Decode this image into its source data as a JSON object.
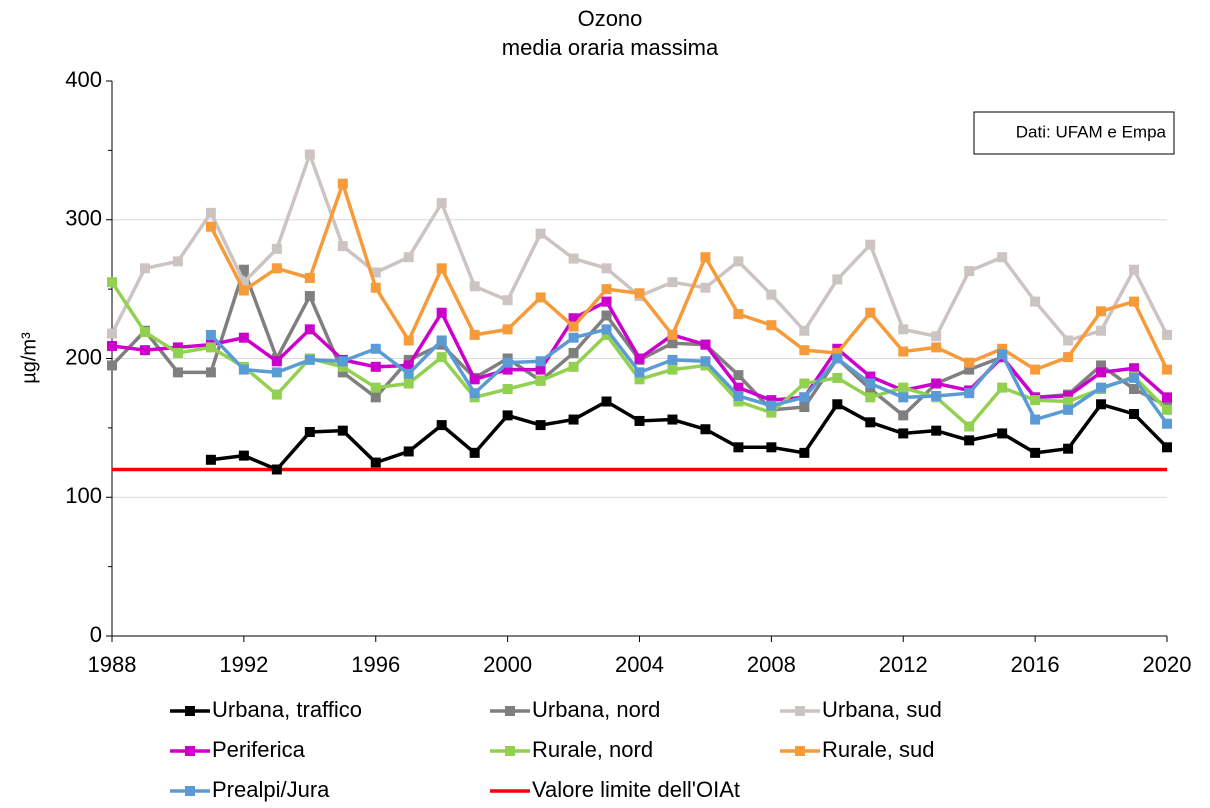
{
  "chart_data": {
    "type": "line",
    "title": "Ozono",
    "subtitle": "media oraria massima",
    "y_label": "µg/m³",
    "annotation": "Dati: UFAM e Empa",
    "x": [
      1988,
      1989,
      1990,
      1991,
      1992,
      1993,
      1994,
      1995,
      1996,
      1997,
      1998,
      1999,
      2000,
      2001,
      2002,
      2003,
      2004,
      2005,
      2006,
      2007,
      2008,
      2009,
      2010,
      2011,
      2012,
      2013,
      2014,
      2015,
      2016,
      2017,
      2018,
      2019,
      2020
    ],
    "xlim": [
      1988,
      2020
    ],
    "xticks": [
      1988,
      1992,
      1996,
      2000,
      2004,
      2008,
      2012,
      2016,
      2020
    ],
    "ylim": [
      0,
      400
    ],
    "yticks": [
      0,
      100,
      200,
      300,
      400
    ],
    "yminor_ticks": [
      50,
      150,
      250,
      350
    ],
    "grid": true,
    "series": [
      {
        "name": "Urbana, traffico",
        "color": "#000000",
        "values": [
          null,
          null,
          null,
          127,
          130,
          120,
          147,
          148,
          125,
          133,
          152,
          132,
          159,
          152,
          156,
          169,
          155,
          156,
          149,
          136,
          136,
          132,
          167,
          154,
          146,
          148,
          141,
          146,
          132,
          135,
          167,
          160,
          136
        ]
      },
      {
        "name": "Urbana, nord",
        "color": "#7f7f7f",
        "values": [
          195,
          220,
          190,
          190,
          264,
          200,
          245,
          190,
          172,
          199,
          210,
          186,
          200,
          184,
          204,
          231,
          199,
          211,
          210,
          188,
          163,
          165,
          200,
          178,
          159,
          182,
          192,
          201,
          172,
          174,
          195,
          178,
          166
        ]
      },
      {
        "name": "Urbana, sud",
        "color": "#ccc4c2",
        "values": [
          218,
          265,
          270,
          305,
          255,
          279,
          347,
          281,
          262,
          273,
          312,
          252,
          242,
          290,
          272,
          265,
          245,
          255,
          251,
          270,
          246,
          220,
          257,
          282,
          221,
          216,
          263,
          273,
          241,
          213,
          220,
          264,
          217
        ]
      },
      {
        "name": "Periferica",
        "color": "#cc00cc",
        "values": [
          209,
          206,
          208,
          210,
          215,
          198,
          221,
          199,
          194,
          195,
          233,
          185,
          192,
          192,
          229,
          241,
          200,
          217,
          210,
          179,
          170,
          172,
          207,
          187,
          177,
          182,
          177,
          201,
          172,
          173,
          190,
          193,
          172
        ]
      },
      {
        "name": "Rurale, nord",
        "color": "#92d050",
        "values": [
          255,
          219,
          204,
          208,
          194,
          174,
          200,
          194,
          179,
          182,
          201,
          172,
          178,
          184,
          194,
          217,
          185,
          192,
          195,
          169,
          161,
          182,
          186,
          172,
          179,
          172,
          151,
          179,
          170,
          169,
          178,
          187,
          163
        ]
      },
      {
        "name": "Rurale, sud",
        "color": "#f79a3a",
        "values": [
          null,
          null,
          null,
          295,
          249,
          265,
          258,
          326,
          251,
          213,
          265,
          217,
          221,
          244,
          223,
          250,
          247,
          217,
          273,
          232,
          224,
          206,
          204,
          233,
          205,
          208,
          197,
          207,
          192,
          201,
          234,
          241,
          192
        ]
      },
      {
        "name": "Prealpi/Jura",
        "color": "#5b9bd5",
        "values": [
          null,
          null,
          null,
          217,
          192,
          190,
          199,
          198,
          207,
          189,
          213,
          175,
          197,
          198,
          215,
          221,
          190,
          199,
          198,
          173,
          166,
          172,
          200,
          182,
          172,
          173,
          175,
          203,
          156,
          163,
          179,
          186,
          153
        ]
      }
    ],
    "limit": {
      "name": "Valore limite dell'OIAt",
      "value": 120,
      "color": "#ff0000"
    }
  }
}
